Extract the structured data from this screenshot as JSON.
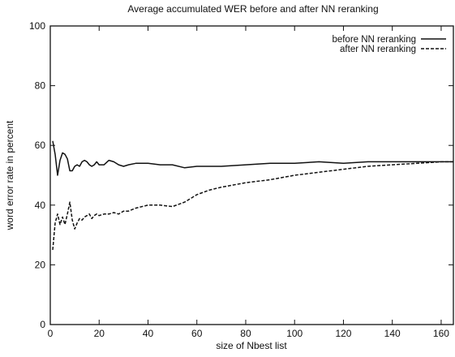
{
  "chart_data": {
    "type": "line",
    "title": "Average accumulated WER before and after NN reranking",
    "xlabel": "size of Nbest list",
    "ylabel": "word error rate in percent",
    "xlim": [
      0,
      165
    ],
    "ylim": [
      0,
      100
    ],
    "xticks": [
      0,
      20,
      40,
      60,
      80,
      100,
      120,
      140,
      160
    ],
    "yticks": [
      0,
      20,
      40,
      60,
      80,
      100
    ],
    "grid": false,
    "legend_position": "top-right",
    "series": [
      {
        "name": "before NN reranking",
        "style": "solid",
        "x": [
          1,
          2,
          3,
          4,
          5,
          6,
          7,
          8,
          9,
          10,
          11,
          12,
          13,
          14,
          15,
          16,
          17,
          18,
          19,
          20,
          22,
          24,
          26,
          28,
          30,
          32,
          35,
          40,
          45,
          50,
          55,
          60,
          65,
          70,
          80,
          90,
          100,
          110,
          120,
          130,
          140,
          150,
          160,
          165
        ],
        "y": [
          61.5,
          57,
          50,
          55,
          57.5,
          57,
          55.5,
          51.5,
          51.5,
          53,
          53.5,
          53,
          54.5,
          55,
          54.5,
          53.5,
          53,
          53.5,
          54.5,
          53.5,
          53.5,
          55,
          54.5,
          53.5,
          53,
          53.5,
          54,
          54,
          53.5,
          53.5,
          52.5,
          53,
          53,
          53,
          53.5,
          54,
          54,
          54.5,
          54,
          54.5,
          54.5,
          54.5,
          54.5,
          54.5
        ]
      },
      {
        "name": "after NN reranking",
        "style": "dashed",
        "x": [
          1,
          2,
          3,
          4,
          5,
          6,
          7,
          8,
          9,
          10,
          11,
          12,
          13,
          14,
          15,
          16,
          17,
          18,
          19,
          20,
          22,
          24,
          26,
          28,
          30,
          32,
          35,
          40,
          45,
          50,
          55,
          60,
          65,
          70,
          80,
          90,
          100,
          110,
          120,
          130,
          140,
          150,
          160,
          165
        ],
        "y": [
          25,
          34,
          37,
          33.5,
          36,
          33.5,
          37,
          41,
          35,
          32,
          34,
          35.5,
          35,
          36,
          36.5,
          37,
          35.5,
          36.5,
          37,
          36.5,
          37,
          37,
          37.5,
          37,
          38,
          38,
          39,
          40,
          40,
          39.5,
          41,
          43.5,
          45,
          46,
          47.5,
          48.5,
          50,
          51,
          52,
          53,
          53.5,
          54,
          54.5,
          54.5
        ]
      }
    ]
  }
}
